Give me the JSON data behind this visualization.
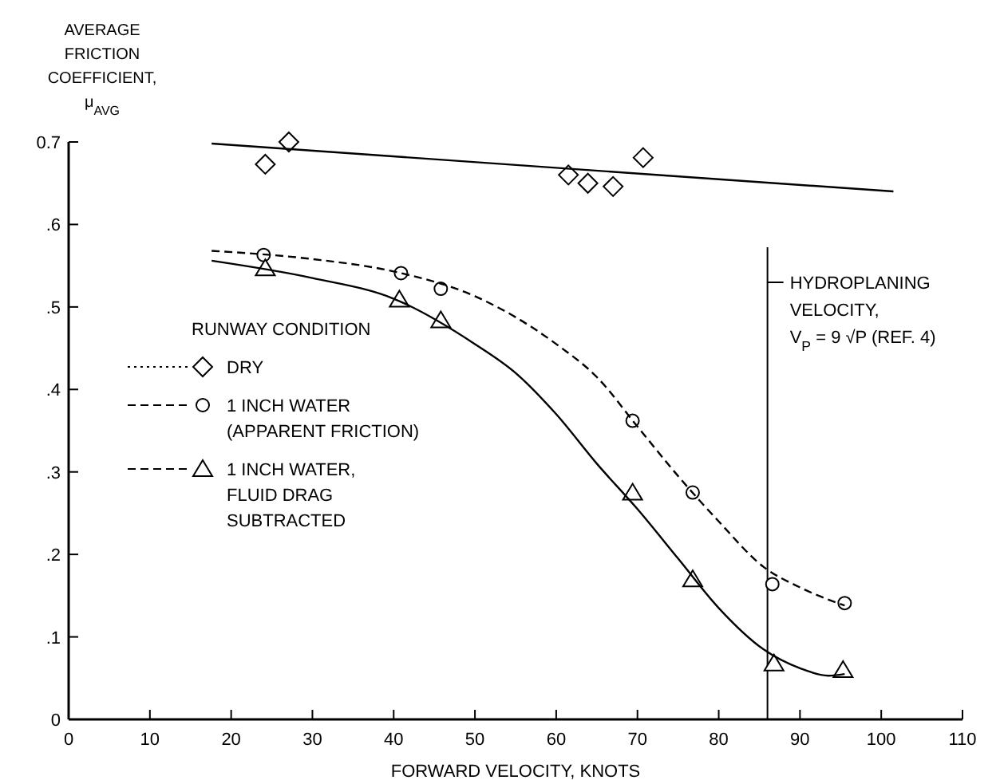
{
  "chart_data": {
    "type": "scatter",
    "xlabel": "FORWARD VELOCITY, KNOTS",
    "ylabel": "AVERAGE\nFRICTION\nCOEFFICIENT,\nμ$_{AVG}$",
    "legend_title": "RUNWAY CONDITION",
    "legend": "left",
    "grid": false,
    "xlim": [
      0,
      110
    ],
    "xticks": [
      0,
      10,
      20,
      30,
      40,
      50,
      60,
      70,
      80,
      90,
      100,
      110
    ],
    "ylim": [
      0,
      0.7
    ],
    "yticks": [
      0,
      {
        "value": 0.1,
        "label": ".1"
      },
      {
        "value": 0.2,
        "label": ".2"
      },
      {
        "value": 0.3,
        "label": ".3"
      },
      {
        "value": 0.4,
        "label": ".4"
      },
      {
        "value": 0.5,
        "label": ".5"
      },
      {
        "value": 0.6,
        "label": ".6"
      },
      {
        "value": 0.7,
        "label": "0.7"
      }
    ],
    "ref_lines": [
      {
        "axis": "x",
        "value": 86,
        "color": "#000000"
      }
    ],
    "annotations": [
      "HYDROPLANING\nVELOCITY,\nV$_{P}$ = 9 √P  (REF. 4)"
    ],
    "series": [
      {
        "name": "DRY",
        "marker": "diamond",
        "line_style": "dotted",
        "color": "#000000",
        "x": [
          24.2,
          27.1,
          61.5,
          63.9,
          67.0,
          70.7
        ],
        "values": [
          0.673,
          0.7,
          0.66,
          0.65,
          0.646,
          0.681
        ]
      },
      {
        "name": "1 INCH WATER\n(APPARENT FRICTION)",
        "marker": "circle",
        "line_style": "dashed",
        "color": "#000000",
        "x": [
          24,
          40.9,
          45.8,
          69.4,
          76.8,
          86.6,
          95.5
        ],
        "values": [
          0.563,
          0.541,
          0.522,
          0.362,
          0.275,
          0.164,
          0.141
        ]
      },
      {
        "name": "1 INCH WATER,\nFLUID DRAG\nSUBTRACTED",
        "marker": "triangle",
        "line_style": "dashed",
        "color": "#000000",
        "x": [
          24.2,
          40.7,
          45.8,
          69.4,
          76.8,
          86.8,
          95.3
        ],
        "values": [
          0.547,
          0.509,
          0.484,
          0.275,
          0.17,
          0.068,
          0.06
        ]
      },
      {
        "type": "line",
        "line_style": "solid",
        "color": "#000000",
        "x": [
          17.6,
          101.5
        ],
        "values": [
          0.698,
          0.64
        ]
      },
      {
        "type": "line",
        "line_style": "dashed",
        "color": "#000000",
        "x": [
          17.6,
          30,
          40,
          50,
          60,
          65,
          70,
          75,
          80,
          85.5,
          90,
          95.5
        ],
        "values": [
          0.568,
          0.558,
          0.543,
          0.513,
          0.455,
          0.415,
          0.355,
          0.295,
          0.24,
          0.185,
          0.16,
          0.138
        ]
      },
      {
        "type": "line",
        "line_style": "solid",
        "color": "#000000",
        "x": [
          17.6,
          30,
          40,
          50,
          55,
          60,
          65,
          70,
          75,
          80,
          85.5,
          90,
          93.5,
          95.5
        ],
        "values": [
          0.556,
          0.535,
          0.51,
          0.455,
          0.42,
          0.37,
          0.31,
          0.255,
          0.195,
          0.135,
          0.085,
          0.062,
          0.053,
          0.055
        ]
      }
    ]
  }
}
